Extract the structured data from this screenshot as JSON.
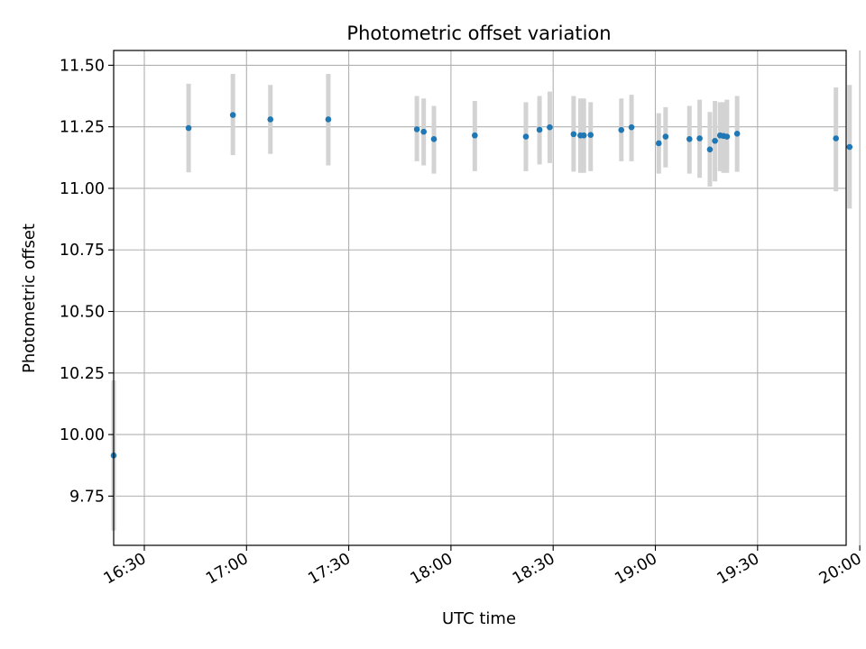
{
  "chart_data": {
    "type": "scatter",
    "title": "Photometric offset variation",
    "xlabel": "UTC time",
    "ylabel": "Photometric offset",
    "x_ticks": [
      "16:30",
      "17:00",
      "17:30",
      "18:00",
      "18:30",
      "19:00",
      "19:30",
      "20:00"
    ],
    "y_ticks": [
      "9.75",
      "10.00",
      "10.25",
      "10.50",
      "10.75",
      "11.00",
      "11.25",
      "11.50"
    ],
    "xlim": [
      "16:21",
      "19:56"
    ],
    "ylim": [
      9.55,
      11.56
    ],
    "grid": true,
    "colors": {
      "point": "#1f77b4",
      "errorbar": "#d3d3d3",
      "grid": "#b0b0b0",
      "axes": "#000000"
    },
    "series": [
      {
        "x": [
          "16:21:00",
          "16:43:00",
          "16:56:00",
          "17:07:00",
          "17:24:00",
          "17:50:00",
          "17:52:00",
          "17:55:00",
          "18:07:00",
          "18:22:00",
          "18:26:00",
          "18:29:00",
          "18:36:00",
          "18:38:00",
          "18:39:00",
          "18:41:00",
          "18:50:00",
          "18:53:00",
          "19:01:00",
          "19:03:00",
          "19:10:00",
          "19:13:00",
          "19:16:00",
          "19:17:30",
          "19:19:00",
          "19:20:00",
          "19:21:00",
          "19:24:00",
          "19:53:00",
          "19:57:00"
        ],
        "y": [
          9.915,
          11.245,
          11.298,
          11.28,
          11.28,
          11.24,
          11.23,
          11.2,
          11.215,
          11.21,
          11.238,
          11.248,
          11.22,
          11.215,
          11.215,
          11.217,
          11.237,
          11.248,
          11.183,
          11.21,
          11.2,
          11.203,
          11.158,
          11.193,
          11.215,
          11.213,
          11.21,
          11.222,
          11.203,
          11.168
        ],
        "err_low": [
          9.61,
          11.065,
          11.135,
          11.14,
          11.093,
          11.11,
          11.093,
          11.06,
          11.07,
          11.07,
          11.097,
          11.103,
          11.068,
          11.063,
          11.063,
          11.07,
          11.11,
          11.11,
          11.06,
          11.085,
          11.06,
          11.043,
          11.007,
          11.028,
          11.07,
          11.063,
          11.063,
          11.067,
          10.988,
          10.918
        ],
        "err_high": [
          10.22,
          11.425,
          11.465,
          11.42,
          11.465,
          11.375,
          11.365,
          11.335,
          11.355,
          11.35,
          11.375,
          11.393,
          11.375,
          11.365,
          11.365,
          11.35,
          11.365,
          11.38,
          11.305,
          11.33,
          11.335,
          11.36,
          11.31,
          11.355,
          11.35,
          11.35,
          11.36,
          11.375,
          11.41,
          11.42
        ]
      }
    ]
  }
}
